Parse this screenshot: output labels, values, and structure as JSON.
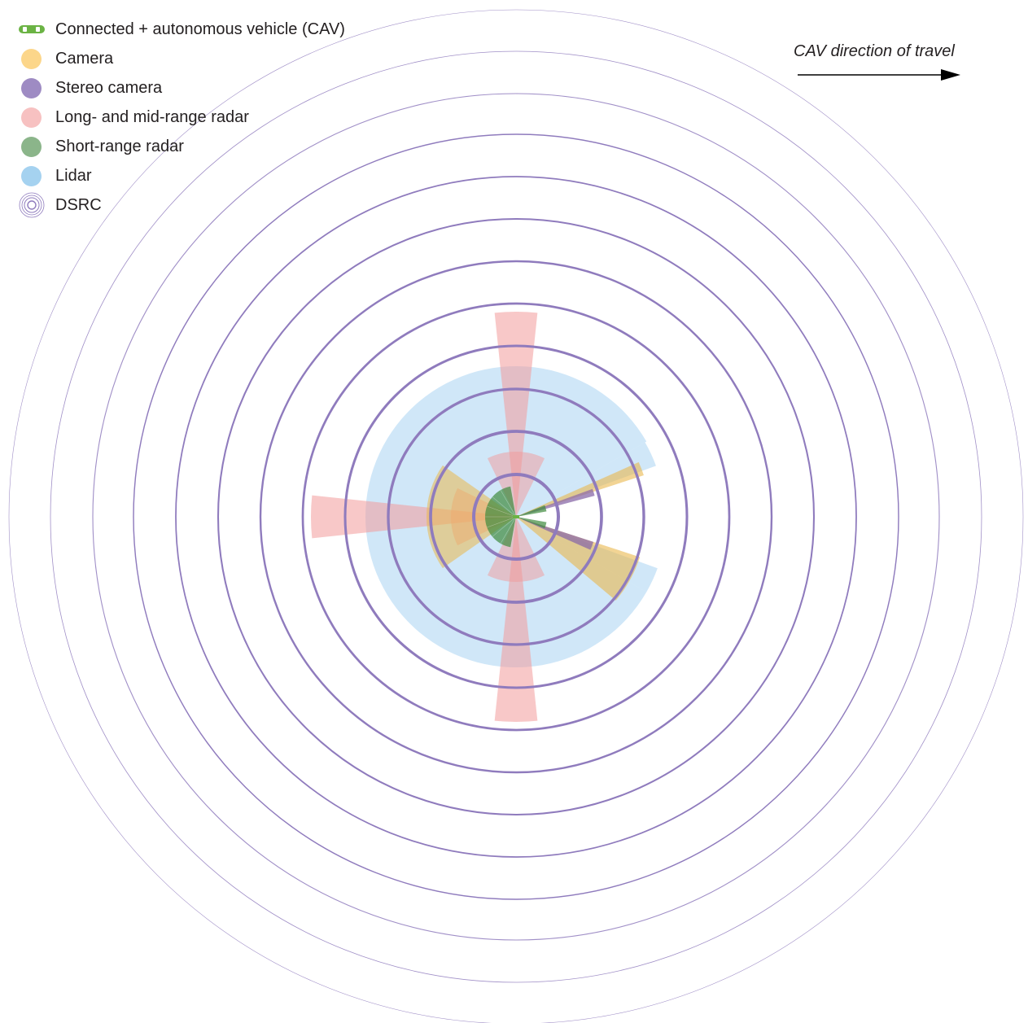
{
  "legend": {
    "items": [
      {
        "id": "cav",
        "label": "Connected + autonomous vehicle (CAV)",
        "icon": "car-icon",
        "color": "#6bb344"
      },
      {
        "id": "camera",
        "label": "Camera",
        "icon": "circle",
        "color": "#fcd68a"
      },
      {
        "id": "stereo",
        "label": "Stereo camera",
        "icon": "circle",
        "color": "#9e8bc3"
      },
      {
        "id": "radar_long",
        "label": "Long- and mid-range radar",
        "icon": "circle",
        "color": "#f7c1c1"
      },
      {
        "id": "radar_short",
        "label": "Short-range radar",
        "icon": "circle",
        "color": "#8bb58a"
      },
      {
        "id": "lidar",
        "label": "Lidar",
        "icon": "circle",
        "color": "#a5d2f0"
      },
      {
        "id": "dsrc",
        "label": "DSRC",
        "icon": "concentric-rings-icon",
        "color": "#8f7bbd"
      }
    ]
  },
  "direction": {
    "label": "CAV direction of travel"
  },
  "colors": {
    "camera": "#eab84c",
    "stereo": "#8a6aa8",
    "radar_long": "#f29a9a",
    "radar_short": "#3f8a3d",
    "lidar": "#a9d3f2",
    "dsrc": "#8f7bbd",
    "arrow": "#000000"
  }
}
